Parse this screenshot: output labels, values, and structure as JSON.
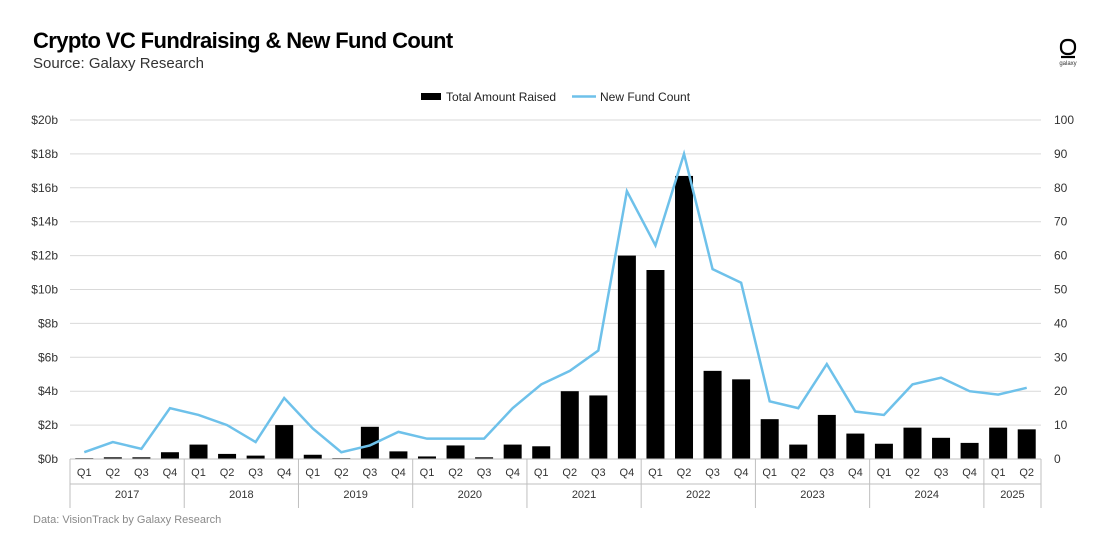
{
  "header": {
    "title": "Crypto VC Fundraising & New Fund Count",
    "subtitle": "Source: Galaxy Research"
  },
  "footer": {
    "text": "Data: VisionTrack by Galaxy Research"
  },
  "logo": {
    "text": "galaxy",
    "icon": "galaxy-logo-icon"
  },
  "colors": {
    "bars": "#000000",
    "line": "#6ec1ea",
    "grid": "#d9d9d9",
    "axis_text": "#333333"
  },
  "chart_data": {
    "type": "bar",
    "title": "Crypto VC Fundraising & New Fund Count",
    "categories": [
      "Q1",
      "Q2",
      "Q3",
      "Q4",
      "Q1",
      "Q2",
      "Q3",
      "Q4",
      "Q1",
      "Q2",
      "Q3",
      "Q4",
      "Q1",
      "Q2",
      "Q3",
      "Q4",
      "Q1",
      "Q2",
      "Q3",
      "Q4",
      "Q1",
      "Q2",
      "Q3",
      "Q4",
      "Q1",
      "Q2",
      "Q3",
      "Q4",
      "Q1",
      "Q2",
      "Q3",
      "Q4",
      "Q1",
      "Q2"
    ],
    "years": [
      {
        "label": "2017",
        "quarters": 4
      },
      {
        "label": "2018",
        "quarters": 4
      },
      {
        "label": "2019",
        "quarters": 4
      },
      {
        "label": "2020",
        "quarters": 4
      },
      {
        "label": "2021",
        "quarters": 4
      },
      {
        "label": "2022",
        "quarters": 4
      },
      {
        "label": "2023",
        "quarters": 4
      },
      {
        "label": "2024",
        "quarters": 4
      },
      {
        "label": "2025",
        "quarters": 2
      }
    ],
    "series": [
      {
        "name": "Total Amount Raised",
        "type": "bar",
        "axis": "left",
        "values": [
          0.05,
          0.1,
          0.1,
          0.4,
          0.85,
          0.3,
          0.2,
          2.0,
          0.25,
          0.05,
          1.9,
          0.45,
          0.15,
          0.8,
          0.1,
          0.85,
          0.75,
          4.0,
          3.75,
          12.0,
          11.15,
          16.7,
          5.2,
          4.7,
          2.35,
          0.85,
          2.6,
          1.5,
          0.9,
          1.85,
          1.25,
          0.95,
          1.85,
          1.75
        ]
      },
      {
        "name": "New Fund Count",
        "type": "line",
        "axis": "right",
        "values": [
          2,
          5,
          3,
          15,
          13,
          10,
          5,
          18,
          9,
          2,
          4,
          8,
          6,
          6,
          6,
          15,
          22,
          26,
          32,
          79,
          63,
          90,
          56,
          52,
          17,
          15,
          28,
          14,
          13,
          22,
          24,
          20,
          19,
          21
        ]
      }
    ],
    "y_left": {
      "min": 0,
      "max": 20,
      "ticks": [
        "$0b",
        "$2b",
        "$4b",
        "$6b",
        "$8b",
        "$10b",
        "$12b",
        "$14b",
        "$16b",
        "$18b",
        "$20b"
      ]
    },
    "y_right": {
      "min": 0,
      "max": 100,
      "ticks": [
        "0",
        "10",
        "20",
        "30",
        "40",
        "50",
        "60",
        "70",
        "80",
        "90",
        "100"
      ]
    },
    "grid": true,
    "legend_position": "top-center"
  }
}
